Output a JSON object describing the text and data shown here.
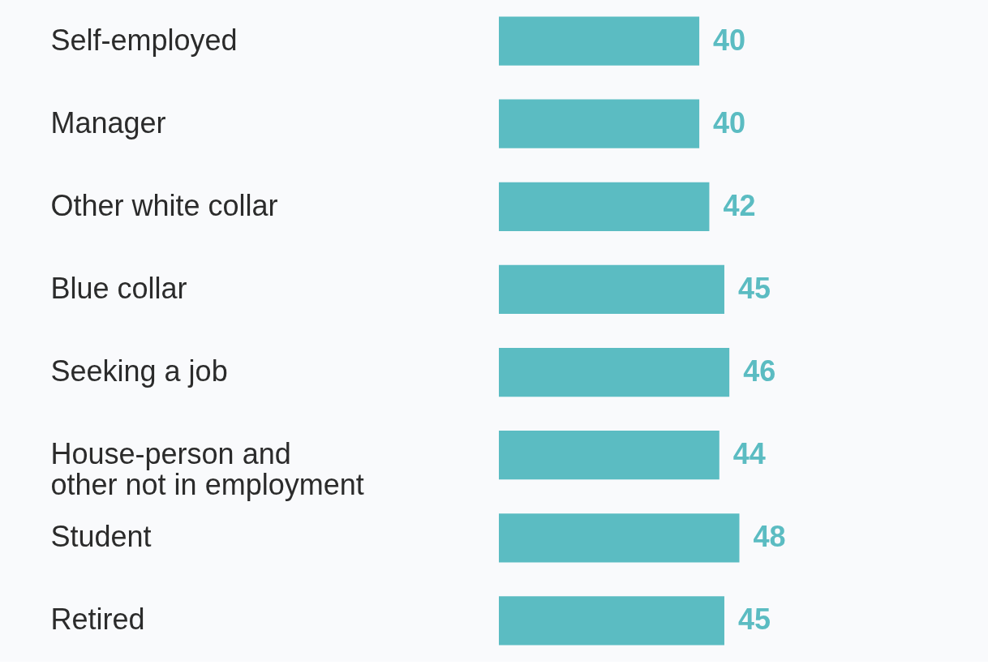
{
  "chart_data": {
    "type": "bar",
    "orientation": "horizontal",
    "data_labels": true,
    "categories": [
      "Self-employed",
      "Manager",
      "Other white collar",
      "Blue collar",
      "Seeking a job",
      "House-person and\nother not in employment",
      "Student",
      "Retired"
    ],
    "values": [
      40,
      40,
      42,
      45,
      46,
      44,
      48,
      45
    ],
    "color": "#5bbcc2"
  }
}
